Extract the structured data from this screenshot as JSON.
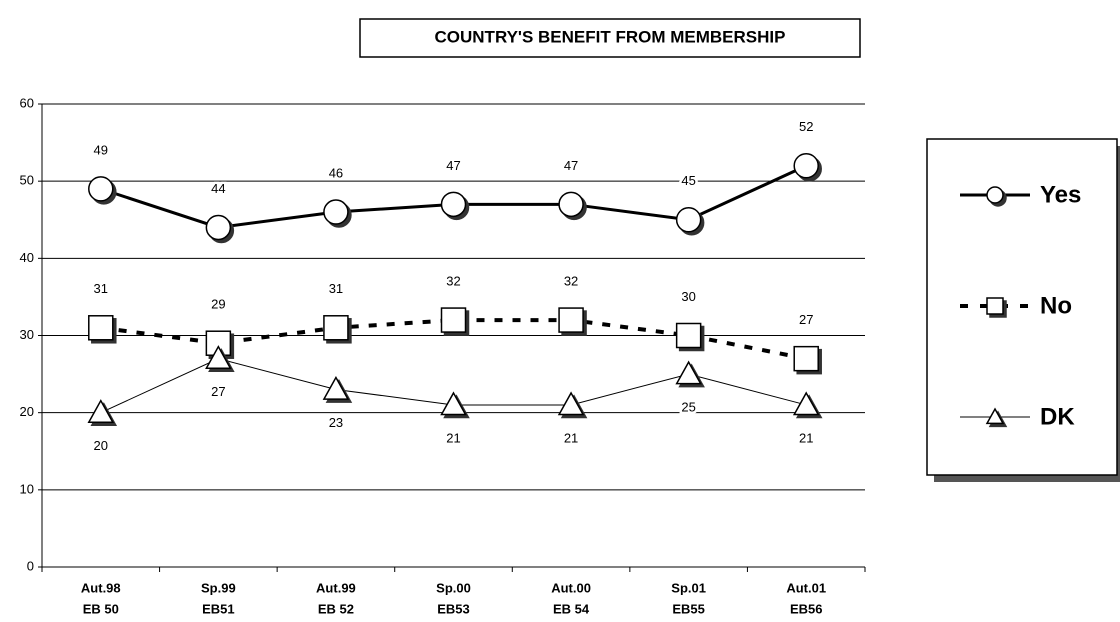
{
  "chart_data": {
    "type": "line",
    "title": "COUNTRY'S BENEFIT FROM MEMBERSHIP",
    "categories": [
      [
        "Aut.98",
        "EB 50"
      ],
      [
        "Sp.99",
        "EB51"
      ],
      [
        "Aut.99",
        "EB 52"
      ],
      [
        "Sp.00",
        "EB53"
      ],
      [
        "Aut.00",
        "EB 54"
      ],
      [
        "Sp.01",
        "EB55"
      ],
      [
        "Aut.01",
        "EB56"
      ]
    ],
    "series": [
      {
        "name": "Yes",
        "color": "#000000",
        "marker": "circle",
        "line_width": 3,
        "dashed": false,
        "label_position": "above",
        "values": [
          49,
          44,
          46,
          47,
          47,
          45,
          52
        ]
      },
      {
        "name": "No",
        "color": "#000000",
        "marker": "square",
        "line_width": 4,
        "dashed": true,
        "label_position": "above",
        "values": [
          31,
          29,
          31,
          32,
          32,
          30,
          27
        ]
      },
      {
        "name": "DK",
        "color": "#000000",
        "marker": "triangle",
        "line_width": 1,
        "dashed": false,
        "label_position": "below",
        "values": [
          20,
          27,
          23,
          21,
          21,
          25,
          21
        ]
      }
    ],
    "ylim": [
      0,
      60
    ],
    "yticks": [
      0,
      10,
      20,
      30,
      40,
      50,
      60
    ],
    "grid": true,
    "legend": "right"
  }
}
